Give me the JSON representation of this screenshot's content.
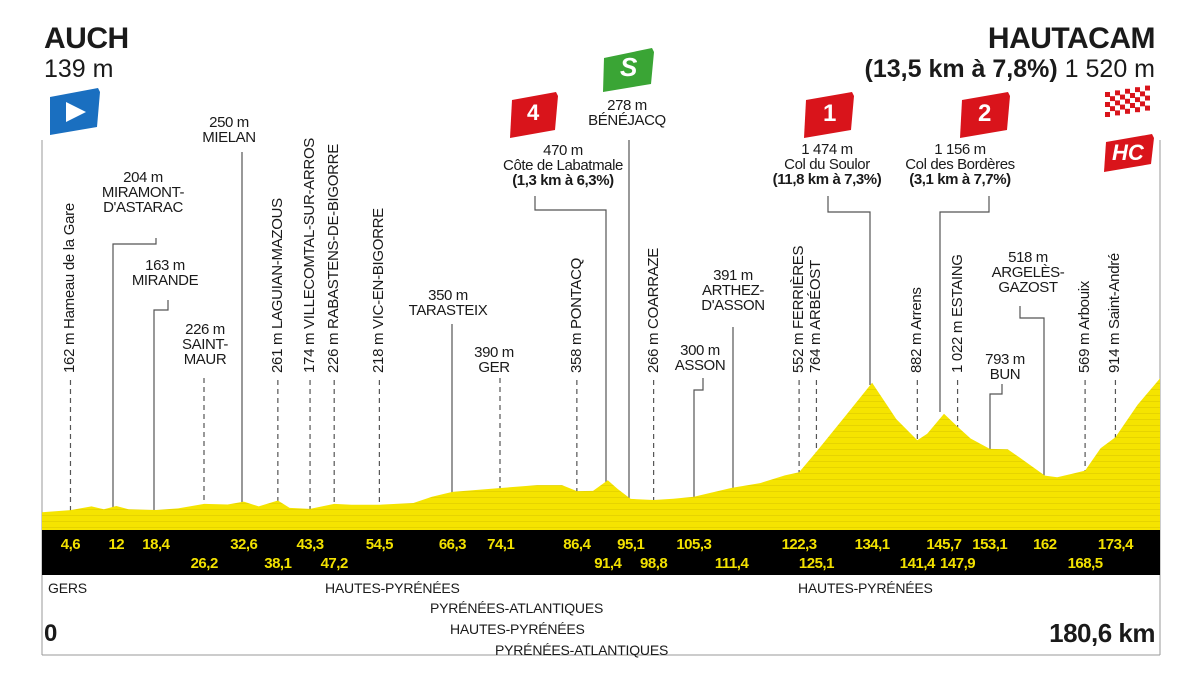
{
  "start": {
    "name": "AUCH",
    "elevation": "139 m"
  },
  "finish": {
    "name": "HAUTACAM",
    "climb": "(13,5 km à 7,8%)",
    "elevation": "1 520 m",
    "distance": "180,6 km"
  },
  "origin_label": "0",
  "colors": {
    "profile": "#f5e400",
    "band": "#000000",
    "km_text": "#f2e100",
    "start_flag": "#1a6fc0",
    "sprint": "#3aa535",
    "kom": "#d9141b"
  },
  "icons": {
    "start": "start-flag-icon",
    "sprint": "sprint-icon",
    "finish": "finish-flag-icon"
  },
  "chart_data": {
    "type": "area",
    "xlabel": "",
    "ylabel": "",
    "xlim": [
      0,
      180.6
    ],
    "grid": false,
    "profile": [
      [
        0,
        139
      ],
      [
        4.6,
        162
      ],
      [
        8,
        200
      ],
      [
        10,
        170
      ],
      [
        12,
        204
      ],
      [
        14,
        170
      ],
      [
        18.4,
        163
      ],
      [
        22,
        180
      ],
      [
        26.2,
        226
      ],
      [
        30,
        220
      ],
      [
        32.6,
        250
      ],
      [
        35,
        200
      ],
      [
        38.1,
        261
      ],
      [
        40,
        185
      ],
      [
        43.3,
        174
      ],
      [
        47.2,
        226
      ],
      [
        50,
        218
      ],
      [
        54.5,
        218
      ],
      [
        60,
        235
      ],
      [
        63,
        300
      ],
      [
        66.3,
        350
      ],
      [
        74.1,
        390
      ],
      [
        80,
        420
      ],
      [
        84,
        420
      ],
      [
        86.4,
        358
      ],
      [
        89,
        360
      ],
      [
        91.4,
        470
      ],
      [
        93,
        380
      ],
      [
        95.1,
        278
      ],
      [
        98.8,
        266
      ],
      [
        102,
        280
      ],
      [
        105.3,
        300
      ],
      [
        111.4,
        391
      ],
      [
        116,
        440
      ],
      [
        120,
        520
      ],
      [
        122.3,
        552
      ],
      [
        125.1,
        764
      ],
      [
        130,
        1150
      ],
      [
        134.1,
        1474
      ],
      [
        138,
        1100
      ],
      [
        141.4,
        882
      ],
      [
        143,
        950
      ],
      [
        145.7,
        1156
      ],
      [
        147.9,
        1022
      ],
      [
        150,
        900
      ],
      [
        153.1,
        793
      ],
      [
        156,
        790
      ],
      [
        158,
        700
      ],
      [
        162,
        518
      ],
      [
        164,
        500
      ],
      [
        166,
        530
      ],
      [
        168.5,
        569
      ],
      [
        171,
        800
      ],
      [
        173.4,
        914
      ],
      [
        177,
        1250
      ],
      [
        180.6,
        1520
      ]
    ],
    "km_markers_top": [
      "4,6",
      "12",
      "18,4",
      "32,6",
      "43,3",
      "54,5",
      "66,3",
      "74,1",
      "86,4",
      "95,1",
      "105,3",
      "122,3",
      "134,1",
      "145,7",
      "153,1",
      "162",
      "173,4"
    ],
    "km_markers_bottom": [
      "26,2",
      "38,1",
      "47,2",
      "91,4",
      "98,8",
      "111,4",
      "125,1",
      "141,4",
      "147,9",
      "168,5"
    ],
    "waypoints_vertical": [
      {
        "km": 4.6,
        "text": "162 m Hameau de la Gare"
      },
      {
        "km": 38.1,
        "text": "261 m LAGUIAN-MAZOUS"
      },
      {
        "km": 43.3,
        "text": "174 m VILLECOMTAL-SUR-ARROS"
      },
      {
        "km": 47.2,
        "text": "226 m RABASTENS-DE-BIGORRE"
      },
      {
        "km": 54.5,
        "text": "218 m VIC-EN-BIGORRE"
      },
      {
        "km": 86.4,
        "text": "358 m PONTACQ"
      },
      {
        "km": 98.8,
        "text": "266 m COARRAZE"
      },
      {
        "km": 122.3,
        "text": "552 m FERRIÈRES"
      },
      {
        "km": 125.1,
        "text": "764 m ARBÉOST"
      },
      {
        "km": 141.4,
        "text": "882 m Arrens"
      },
      {
        "km": 147.9,
        "text": "1 022 m ESTAING"
      },
      {
        "km": 168.5,
        "text": "569 m Arbouix"
      },
      {
        "km": 173.4,
        "text": "914 m Saint-André"
      }
    ],
    "waypoints_horizontal": [
      {
        "km": 12,
        "elevation": "204 m",
        "name": "MIRAMONT-\nD'ASTARAC"
      },
      {
        "km": 18.4,
        "elevation": "163 m",
        "name": "MIRANDE"
      },
      {
        "km": 26.2,
        "elevation": "226 m",
        "name": "SAINT-\nMAUR"
      },
      {
        "km": 32.6,
        "elevation": "250 m",
        "name": "MIELAN"
      },
      {
        "km": 66.3,
        "elevation": "350 m",
        "name": "TARASTEIX"
      },
      {
        "km": 74.1,
        "elevation": "390 m",
        "name": "GER"
      },
      {
        "km": 91.4,
        "elevation": "470 m",
        "name": "Côte de Labatmale",
        "climb": "(1,3 km à 6,3%)",
        "category": "4"
      },
      {
        "km": 95.1,
        "elevation": "278 m",
        "name": "BÉNÉJACQ",
        "sprint": "S"
      },
      {
        "km": 105.3,
        "elevation": "300 m",
        "name": "ASSON"
      },
      {
        "km": 111.4,
        "elevation": "391 m",
        "name": "ARTHEZ-\nD'ASSON"
      },
      {
        "km": 134.1,
        "elevation": "1 474 m",
        "name": "Col du Soulor",
        "climb": "(11,8 km à 7,3%)",
        "category": "1"
      },
      {
        "km": 145.7,
        "elevation": "1 156 m",
        "name": "Col des Bordères",
        "climb": "(3,1 km à 7,7%)",
        "category": "2"
      },
      {
        "km": 153.1,
        "elevation": "793 m",
        "name": "BUN"
      },
      {
        "km": 162,
        "elevation": "518 m",
        "name": "ARGELÈS-\nGAZOST"
      }
    ],
    "finish_category": "HC",
    "regions": [
      "GERS",
      "HAUTES-PYRÉNÉES",
      "PYRÉNÉES-ATLANTIQUES",
      "HAUTES-PYRÉNÉES",
      "PYRÉNÉES-ATLANTIQUES",
      "HAUTES-PYRÉNÉES"
    ]
  }
}
